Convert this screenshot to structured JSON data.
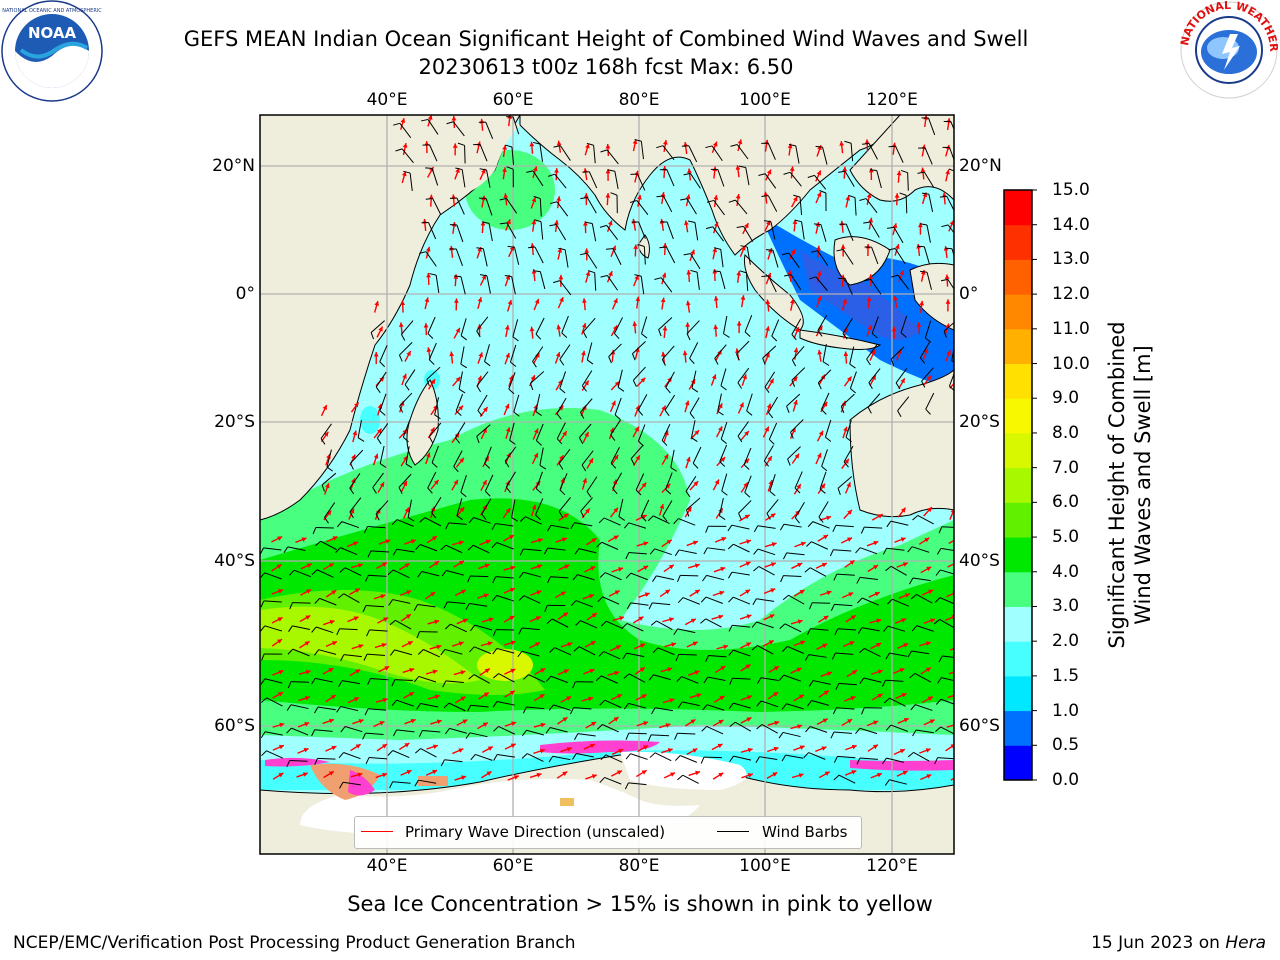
{
  "header": {
    "title_line1": "GEFS MEAN Indian Ocean Significant Height of Combined Wind Waves and Swell",
    "title_line2": "20230613 t00z 168h fcst   Max: 6.50"
  },
  "logos": {
    "left_name": "NOAA",
    "right_name": "NATIONAL WEATHER SERVICE"
  },
  "axes": {
    "lon_ticks": [
      "40°E",
      "60°E",
      "80°E",
      "100°E",
      "120°E"
    ],
    "lat_ticks_left": [
      "20°N",
      "0°",
      "20°S",
      "40°S",
      "60°S"
    ],
    "lat_ticks_right": [
      "20°N",
      "0°",
      "20°S",
      "40°S",
      "60°S"
    ]
  },
  "colorbar": {
    "title_line1": "Significant Height of Combined",
    "title_line2": "Wind Waves and Swell [m]",
    "tick_labels": [
      "0.0",
      "0.5",
      "1.0",
      "1.5",
      "2.0",
      "3.0",
      "4.0",
      "5.0",
      "6.0",
      "7.0",
      "8.0",
      "9.0",
      "10.0",
      "11.0",
      "12.0",
      "13.0",
      "14.0",
      "15.0"
    ],
    "colors": [
      "#0000ff",
      "#0070ff",
      "#00e8ff",
      "#48ffff",
      "#a0ffff",
      "#48ff80",
      "#00e800",
      "#60f000",
      "#a8f800",
      "#d8f800",
      "#f8f800",
      "#ffe000",
      "#ffb000",
      "#ff8800",
      "#ff6000",
      "#ff3000",
      "#ff0000"
    ]
  },
  "legend": {
    "wave_label": "Primary Wave Direction (unscaled)",
    "wave_color": "#ff0000",
    "barb_label": "Wind Barbs",
    "barb_color": "#000000"
  },
  "map": {
    "land_color": "#efeedd",
    "ice_note": "Sea Ice Concentration > 15% is shown in pink to yellow"
  },
  "footer": {
    "left": "NCEP/EMC/Verification Post Processing Product Generation Branch",
    "right_date": "15 Jun 2023 on ",
    "right_host": "Hera"
  }
}
